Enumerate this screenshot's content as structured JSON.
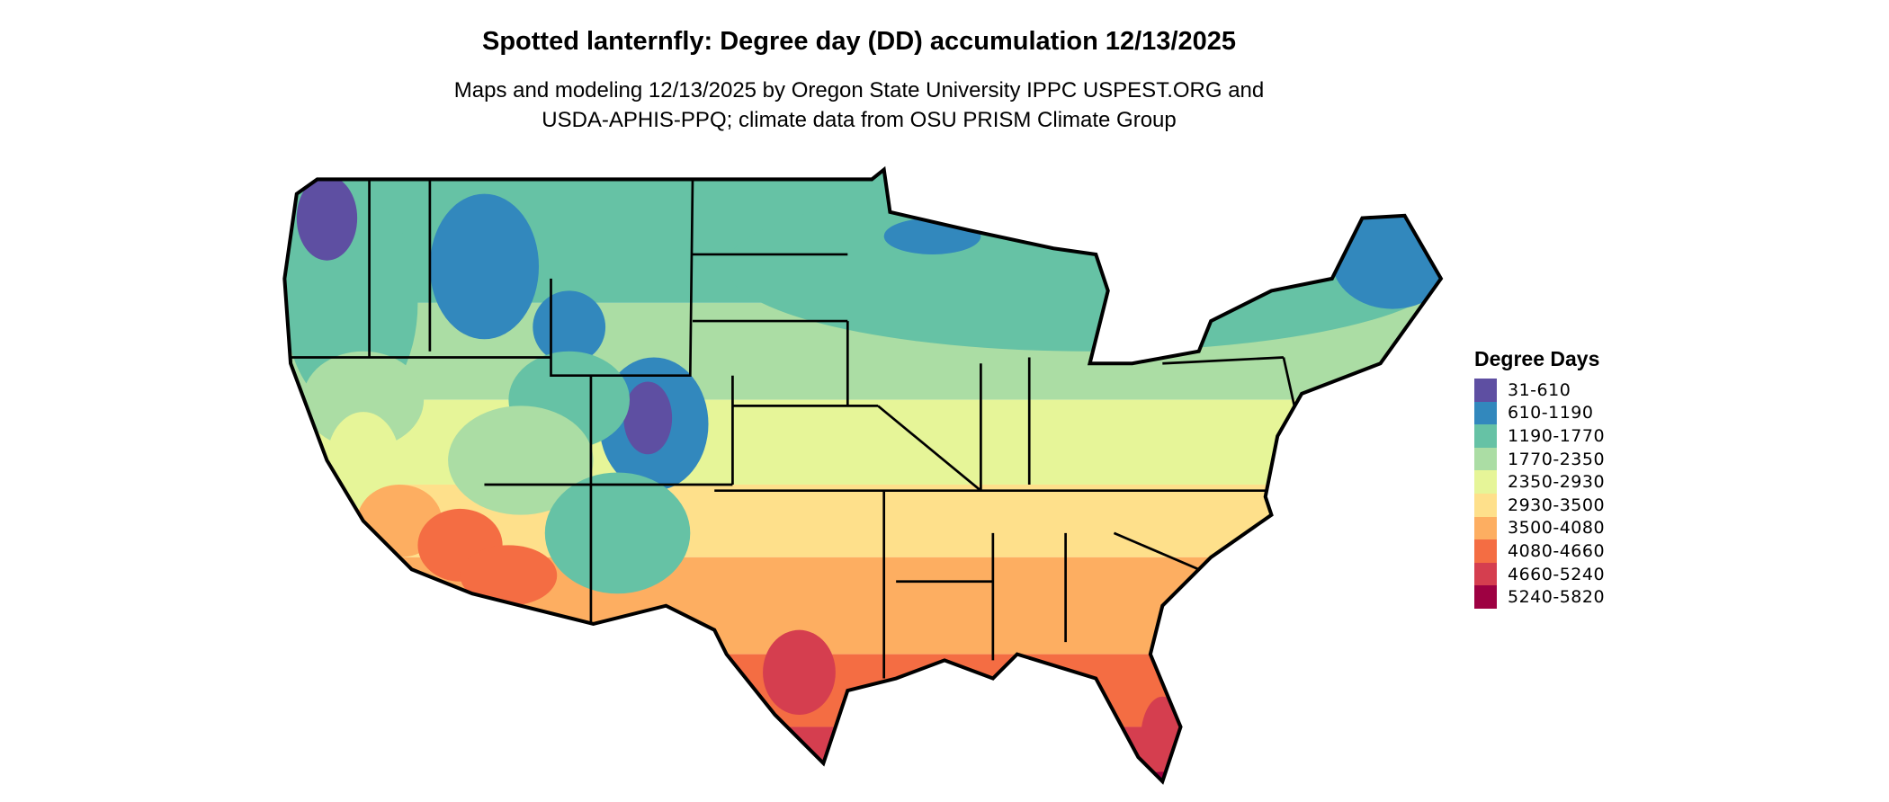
{
  "title": "Spotted lanternfly: Degree day (DD) accumulation 12/13/2025",
  "subtitle": {
    "line1": "Maps and modeling 12/13/2025 by Oregon State University IPPC USPEST.ORG and",
    "line2": "USDA-APHIS-PPQ; climate data from OSU PRISM Climate Group"
  },
  "legend": {
    "title": "Degree Days",
    "items": [
      {
        "label": "31-610",
        "color": "#5E4FA2"
      },
      {
        "label": "610-1190",
        "color": "#3288BD"
      },
      {
        "label": "1190-1770",
        "color": "#66C2A5"
      },
      {
        "label": "1770-2350",
        "color": "#ABDDA4"
      },
      {
        "label": "2350-2930",
        "color": "#E6F598"
      },
      {
        "label": "2930-3500",
        "color": "#FEE08B"
      },
      {
        "label": "3500-4080",
        "color": "#FDAE61"
      },
      {
        "label": "4080-4660",
        "color": "#F46D43"
      },
      {
        "label": "4660-5240",
        "color": "#D53E4F"
      },
      {
        "label": "5240-5820",
        "color": "#9E0142"
      }
    ]
  }
}
